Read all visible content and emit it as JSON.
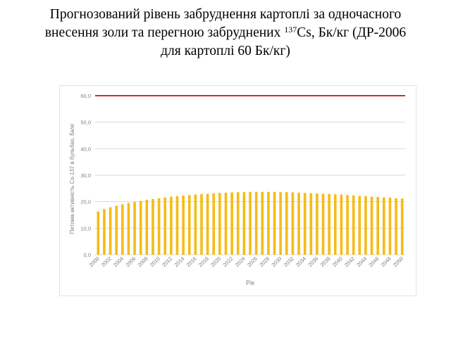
{
  "title": {
    "line1": "Прогнозований рівень забруднення картоплі за одночасного",
    "line2_before": "внесення золи та перегною забруднених ",
    "line2_sup": "137",
    "line2_after": "Cs, Бк/кг (ДР-2006",
    "line3": "для картоплі 60 Бк/кг)"
  },
  "chart_data": {
    "type": "bar",
    "title": "",
    "xlabel": "Рік",
    "ylabel": "Питома активність Cs-137 в бульбах, Бк/кг",
    "ylim": [
      0,
      60
    ],
    "yticks": [
      "0,0",
      "10,0",
      "20,0",
      "30,0",
      "40,0",
      "50,0",
      "60,0"
    ],
    "grid": true,
    "categories": [
      "2000",
      "2001",
      "2002",
      "2003",
      "2004",
      "2005",
      "2006",
      "2007",
      "2008",
      "2009",
      "2010",
      "2011",
      "2012",
      "2013",
      "2014",
      "2015",
      "2016",
      "2017",
      "2018",
      "2019",
      "2020",
      "2021",
      "2022",
      "2023",
      "2024",
      "2025",
      "2026",
      "2027",
      "2028",
      "2029",
      "2030",
      "2031",
      "2032",
      "2033",
      "2034",
      "2035",
      "2036",
      "2037",
      "2038",
      "2039",
      "2040",
      "2041",
      "2042",
      "2043",
      "2044",
      "2045",
      "2046",
      "2047",
      "2048",
      "2049",
      "2050"
    ],
    "xtick_labels": [
      "2000",
      "2002",
      "2004",
      "2006",
      "2008",
      "2010",
      "2012",
      "2014",
      "2016",
      "2018",
      "2020",
      "2022",
      "2024",
      "2026",
      "2028",
      "2030",
      "2032",
      "2034",
      "2036",
      "2038",
      "2040",
      "2042",
      "2044",
      "2046",
      "2048",
      "2050"
    ],
    "values": [
      16.3,
      17.2,
      17.9,
      18.5,
      19.0,
      19.5,
      19.9,
      20.3,
      20.7,
      21.0,
      21.3,
      21.6,
      21.9,
      22.1,
      22.3,
      22.5,
      22.7,
      22.9,
      23.0,
      23.2,
      23.3,
      23.4,
      23.5,
      23.6,
      23.6,
      23.7,
      23.7,
      23.7,
      23.7,
      23.7,
      23.6,
      23.6,
      23.5,
      23.4,
      23.3,
      23.2,
      23.1,
      23.0,
      22.9,
      22.8,
      22.7,
      22.5,
      22.4,
      22.2,
      22.1,
      21.9,
      21.8,
      21.6,
      21.5,
      21.3,
      21.2
    ],
    "reference_line": {
      "value": 60,
      "color": "#d62a20"
    },
    "bar_color": "#f5bc18",
    "grid_color": "#d9d9d9",
    "tick_color": "#7f7f7f"
  }
}
